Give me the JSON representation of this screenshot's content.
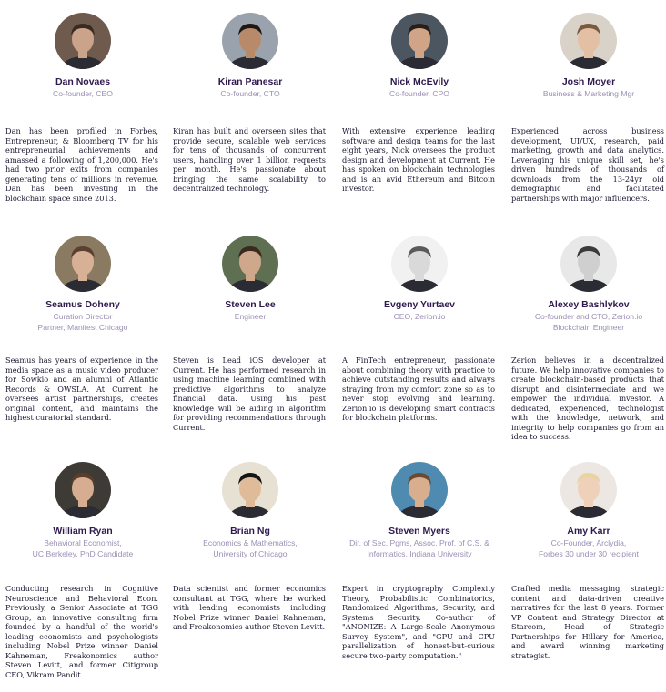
{
  "team": [
    {
      "name": "Dan Novaes",
      "role_lines": [
        "Co-founder, CEO"
      ],
      "bio": "Dan has been profiled in Forbes, Entrepreneur, & Bloomberg TV for his entrepreneurial achievements and amassed a following of 1,200,000. He's had two prior exits from companies generating tens of millions in revenue. Dan has been investing in the blockchain space since 2013.",
      "tone": "#caa38a",
      "hair": "#3b2a20",
      "bg": "#6f5b4e"
    },
    {
      "name": "Kiran Panesar",
      "role_lines": [
        "Co-founder, CTO"
      ],
      "bio": "Kiran has built and overseen sites that provide secure, scalable web services for tens of thousands of concurrent users, handling over 1 billion requests per month. He's passionate about bringing the same scalability to decentralized technology.",
      "tone": "#b88a6a",
      "hair": "#1e1714",
      "bg": "#9aa3ad"
    },
    {
      "name": "Nick McEvily",
      "role_lines": [
        "Co-founder, CPO"
      ],
      "bio": "With extensive experience leading software and design teams for the last eight years, Nick oversees the product design and development at Current. He has spoken on blockchain technologies and is an avid Ethereum and Bitcoin investor.",
      "tone": "#d0a587",
      "hair": "#2a1e18",
      "bg": "#4c5660"
    },
    {
      "name": "Josh Moyer",
      "role_lines": [
        "Business & Marketing Mgr"
      ],
      "bio": "Experienced across business development, UI/UX, research, paid marketing, growth and data analytics. Leveraging his unique skill set, he's driven hundreds of thousands of downloads from the 13-24yr old demographic and facilitated partnerships with major influencers.",
      "tone": "#e3bfa4",
      "hair": "#7a5a3c",
      "bg": "#d9d2c8"
    },
    {
      "name": "Seamus Doheny",
      "role_lines": [
        "Curation Director",
        "Partner, Manifest Chicago"
      ],
      "bio": "Seamus has years of experience in the media space as a music video producer for Sowkio and an alumni of Atlantic Records & OWSLA. At Current he oversees artist partnerships, creates original content, and maintains the highest curatorial standard.",
      "tone": "#d8b095",
      "hair": "#5a4030",
      "bg": "#8a7a62"
    },
    {
      "name": "Steven Lee",
      "role_lines": [
        "Engineer"
      ],
      "bio": "Steven is Lead iOS developer at Current. He has performed research in using machine learning combined with predictive algorithms to analyze financial data. Using his past knowledge will be aiding in algorithm for providing recommendations through Current.",
      "tone": "#cfa88c",
      "hair": "#3a2a1e",
      "bg": "#5e6f52"
    },
    {
      "name": "Evgeny Yurtaev",
      "role_lines": [
        "CEO, Zerion.io"
      ],
      "bio": "A FinTech entrepreneur, passionate about combining theory with practice to achieve outstanding results and always straying from my comfort zone so as to never stop evolving and learning. Zerion.io is developing smart contracts for blockchain platforms.",
      "tone": "#d9d9d9",
      "hair": "#5a5a5a",
      "bg": "#f1f1f1"
    },
    {
      "name": "Alexey Bashlykov",
      "role_lines": [
        "Co-founder and CTO, Zerion.io",
        "Blockchain Engineer"
      ],
      "bio": "Zerion believes in a decentralized future. We help innovative companies to create blockchain-based products that disrupt and disintermediate and we empower the individual investor. A dedicated, experienced, technologist with the knowledge, network, and integrity to help companies go from an idea to success.",
      "tone": "#cfcfcf",
      "hair": "#3a3a3a",
      "bg": "#e8e8e8"
    },
    {
      "name": "William Ryan",
      "role_lines": [
        "Behavioral Economist,",
        "UC Berkeley, PhD Candidate"
      ],
      "bio": "Conducting research in Cognitive Neuroscience and Behavioral Econ. Previously, a Senior Associate at TGG Group, an innovative consulting firm founded by a handful of the world's leading economists and psychologists including Nobel Prize winner Daniel Kahneman, Freakonomics author Steven Levitt, and former Citigroup CEO, Vikram Pandit.",
      "tone": "#d6ad90",
      "hair": "#5a3e2a",
      "bg": "#3e3a36"
    },
    {
      "name": "Brian Ng",
      "role_lines": [
        "Economics & Mathematics,",
        "University of Chicago"
      ],
      "bio": "Data scientist and former economics consultant at TGG, where he worked with leading economists including Nobel Prize winner Daniel Kahneman, and Freakonomics author Steven Levitt.",
      "tone": "#e0bb99",
      "hair": "#141414",
      "bg": "#e7e1d4"
    },
    {
      "name": "Steven Myers",
      "role_lines": [
        "Dir. of Sec. Pgms, Assoc. Prof. of C.S. &",
        "Informatics, Indiana University"
      ],
      "bio": "Expert in cryptography Complexity Theory, Probabilistic Combinatorics, Randomized Algorithms, Security, and Systems Security. Co-author of \"ANONIZE: A Large-Scale Anonymous Survey System\", and \"GPU and CPU parallelization of honest-but-curious secure two-party computation.\"",
      "tone": "#d8ae8e",
      "hair": "#6a4a30",
      "bg": "#4f8bb0"
    },
    {
      "name": "Amy Karr",
      "role_lines": [
        "Co-Founder, Arclydia,",
        "Forbes 30 under 30 recipient"
      ],
      "bio": "Crafted media messaging, strategic content and data-driven creative narratives for the last 8 years. Former VP Content and Strategy Director at Starcom, Head of Strategic Partnerships for Hillary for America, and award winning marketing strategist.",
      "tone": "#efd0b8",
      "hair": "#e8d4a2",
      "bg": "#ece7e2"
    }
  ]
}
